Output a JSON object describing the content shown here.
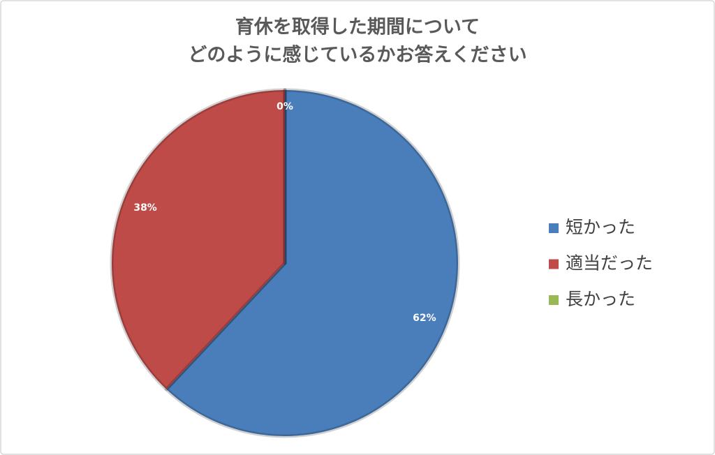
{
  "chart_data": {
    "type": "pie",
    "title": [
      "育休を取得した期間について",
      "どのように感じているかお答えください"
    ],
    "categories": [
      "短かった",
      "適当だった",
      "長かった"
    ],
    "values": [
      62,
      38,
      0
    ],
    "value_labels": [
      "62%",
      "38%",
      "0%"
    ],
    "colors": [
      "#4a7ebb",
      "#be4b48",
      "#98b954"
    ],
    "legend": "right"
  }
}
